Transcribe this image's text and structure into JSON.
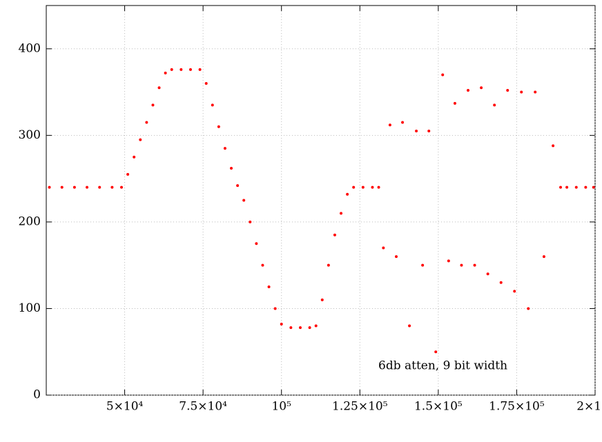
{
  "chart_data": {
    "type": "scatter",
    "annotation": "6db atten, 9 bit width",
    "xlim": [
      25000,
      200000
    ],
    "ylim": [
      0,
      450
    ],
    "xticks": [
      {
        "value": 50000,
        "label": "5×10⁴"
      },
      {
        "value": 75000,
        "label": "7.5×10⁴"
      },
      {
        "value": 100000,
        "label": "10⁵"
      },
      {
        "value": 125000,
        "label": "1.25×10⁵"
      },
      {
        "value": 150000,
        "label": "1.5×10⁵"
      },
      {
        "value": 175000,
        "label": "1.75×10⁵"
      },
      {
        "value": 200000,
        "label": "2×10⁵"
      }
    ],
    "yticks": [
      0,
      100,
      200,
      300,
      400
    ],
    "grid": true,
    "series": [
      {
        "color": "#ff0000",
        "x": [
          26000,
          30000,
          34000,
          38000,
          42000,
          46000,
          49000,
          51000,
          53000,
          55000,
          57000,
          59000,
          61000,
          63000,
          65000,
          68000,
          71000,
          74000,
          76000,
          78000,
          80000,
          82000,
          84000,
          86000,
          88000,
          90000,
          92000,
          94000,
          96000,
          98000,
          100000,
          103000,
          106000,
          109000,
          111000,
          113000,
          115000,
          117000,
          119000,
          121000,
          123000,
          126000,
          129000,
          131000,
          132500,
          134600,
          136600,
          138600,
          140800,
          143000,
          145000,
          147000,
          149200,
          151400,
          153300,
          155300,
          157400,
          159500,
          161600,
          163700,
          165800,
          167900,
          170000,
          172100,
          174300,
          176500,
          178700,
          180900,
          183700,
          186600,
          189000,
          191000,
          194000,
          197000,
          199500
        ],
        "values": [
          240,
          240,
          240,
          240,
          240,
          240,
          240,
          255,
          275,
          295,
          315,
          335,
          355,
          372,
          376,
          376,
          376,
          376,
          360,
          335,
          310,
          285,
          262,
          242,
          225,
          200,
          175,
          150,
          125,
          100,
          82,
          78,
          78,
          78,
          80,
          110,
          150,
          185,
          210,
          232,
          240,
          240,
          240,
          240,
          170,
          312,
          160,
          315,
          80,
          305,
          150,
          305,
          50,
          370,
          155,
          337,
          150,
          352,
          150,
          355,
          140,
          335,
          130,
          352,
          120,
          350,
          100,
          350,
          160,
          288,
          240,
          240,
          240,
          240,
          240
        ]
      }
    ]
  }
}
